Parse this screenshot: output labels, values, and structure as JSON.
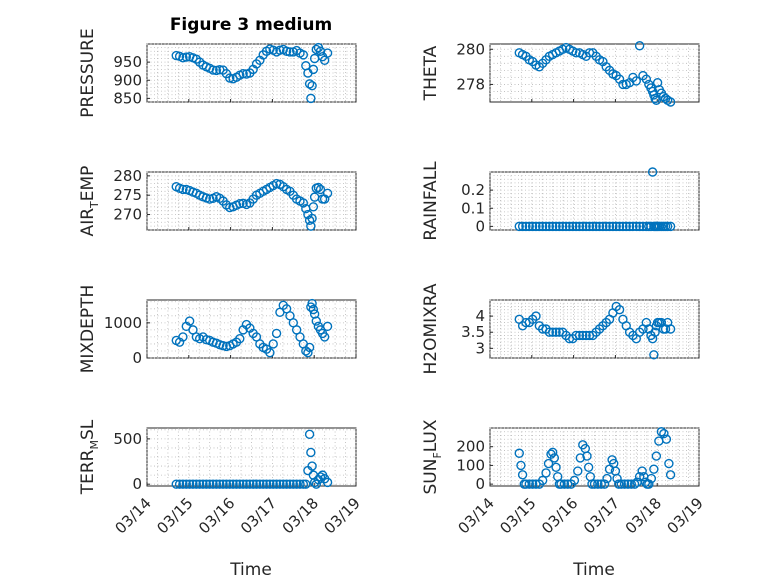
{
  "figure": {
    "title": "Figure 3 medium",
    "xlabel": "Time"
  },
  "style": {
    "marker_color": "#0072BD",
    "axes_color": "#262626",
    "grid_color": "#b9b9b9"
  },
  "chart_data": [
    {
      "type": "scatter",
      "panel": "top-left",
      "title": "Figure 3 medium",
      "ylabel": "PRESSURE",
      "ylabel_sub": "",
      "ylabel_tail": "",
      "ylim": [
        840,
        1000
      ],
      "yticks": [
        850,
        900,
        950
      ],
      "grid": true,
      "xlim": [
        0,
        5
      ],
      "xticks": [],
      "xtick_labels": [],
      "x": [
        0.7,
        0.78,
        0.86,
        0.94,
        1.02,
        1.1,
        1.18,
        1.26,
        1.34,
        1.42,
        1.5,
        1.58,
        1.66,
        1.74,
        1.82,
        1.9,
        1.98,
        2.06,
        2.14,
        2.22,
        2.3,
        2.38,
        2.46,
        2.54,
        2.62,
        2.7,
        2.78,
        2.86,
        2.94,
        3.02,
        3.1,
        3.18,
        3.26,
        3.34,
        3.42,
        3.5,
        3.58,
        3.66,
        3.74,
        3.8,
        3.85,
        3.89,
        3.92,
        3.95,
        3.98,
        4.01,
        4.05,
        4.1,
        4.15,
        4.2,
        4.25,
        4.32
      ],
      "y": [
        968,
        966,
        962,
        964,
        965,
        962,
        958,
        950,
        942,
        937,
        933,
        928,
        927,
        929,
        928,
        918,
        906,
        904,
        908,
        914,
        918,
        917,
        920,
        930,
        945,
        955,
        970,
        980,
        986,
        983,
        978,
        983,
        985,
        980,
        978,
        978,
        982,
        975,
        970,
        940,
        920,
        890,
        850,
        885,
        930,
        960,
        985,
        990,
        980,
        965,
        955,
        975
      ]
    },
    {
      "type": "scatter",
      "panel": "top-right",
      "ylabel": "THETA",
      "ylabel_sub": "",
      "ylabel_tail": "",
      "ylim": [
        277,
        280.3
      ],
      "yticks": [
        278,
        280
      ],
      "grid": true,
      "xlim": [
        0,
        5
      ],
      "xticks": [],
      "xtick_labels": [],
      "x": [
        0.7,
        0.78,
        0.86,
        0.94,
        1.02,
        1.1,
        1.18,
        1.26,
        1.34,
        1.42,
        1.5,
        1.58,
        1.66,
        1.74,
        1.82,
        1.9,
        1.98,
        2.06,
        2.14,
        2.22,
        2.3,
        2.38,
        2.46,
        2.54,
        2.62,
        2.7,
        2.78,
        2.86,
        2.94,
        3.02,
        3.1,
        3.18,
        3.26,
        3.34,
        3.42,
        3.5,
        3.58,
        3.66,
        3.74,
        3.8,
        3.85,
        3.89,
        3.92,
        3.95,
        3.98,
        4.01,
        4.05,
        4.1,
        4.15,
        4.2,
        4.25,
        4.32
      ],
      "y": [
        279.8,
        279.7,
        279.6,
        279.4,
        279.3,
        279.1,
        279.0,
        279.2,
        279.4,
        279.6,
        279.7,
        279.8,
        279.9,
        280.0,
        280.1,
        280.0,
        279.9,
        279.8,
        279.8,
        279.7,
        279.6,
        279.8,
        279.8,
        279.6,
        279.4,
        279.3,
        279.0,
        278.8,
        278.6,
        278.5,
        278.3,
        278.0,
        278.0,
        278.1,
        278.4,
        278.2,
        280.2,
        278.5,
        278.3,
        278.0,
        277.8,
        277.6,
        277.4,
        277.2,
        277.1,
        278.1,
        277.7,
        277.5,
        277.3,
        277.2,
        277.1,
        277.0
      ]
    },
    {
      "type": "scatter",
      "panel": "row2-left",
      "ylabel": "AIR",
      "ylabel_sub": "T",
      "ylabel_tail": "EMP",
      "ylim": [
        266,
        281
      ],
      "yticks": [
        270,
        275,
        280
      ],
      "grid": true,
      "xlim": [
        0,
        5
      ],
      "xticks": [],
      "xtick_labels": [],
      "x": [
        0.7,
        0.78,
        0.86,
        0.94,
        1.02,
        1.1,
        1.18,
        1.26,
        1.34,
        1.42,
        1.5,
        1.58,
        1.66,
        1.74,
        1.82,
        1.9,
        1.98,
        2.06,
        2.14,
        2.22,
        2.3,
        2.38,
        2.46,
        2.54,
        2.62,
        2.7,
        2.78,
        2.86,
        2.94,
        3.02,
        3.1,
        3.18,
        3.26,
        3.34,
        3.42,
        3.5,
        3.58,
        3.66,
        3.74,
        3.8,
        3.85,
        3.89,
        3.92,
        3.95,
        3.98,
        4.01,
        4.05,
        4.1,
        4.15,
        4.2,
        4.25,
        4.32
      ],
      "y": [
        277.2,
        276.8,
        276.5,
        276.5,
        276.2,
        275.8,
        275.5,
        275.0,
        274.6,
        274.3,
        274.0,
        274.2,
        274.6,
        274.2,
        273.5,
        272.5,
        271.8,
        272.0,
        272.4,
        272.8,
        272.9,
        272.6,
        273.0,
        274.0,
        275.0,
        275.5,
        276.0,
        276.5,
        277.0,
        277.5,
        278.0,
        277.8,
        277.2,
        276.5,
        276.0,
        275.0,
        274.0,
        273.5,
        273.0,
        271.5,
        270.0,
        268.5,
        267.0,
        269.0,
        272.0,
        274.5,
        276.8,
        277.0,
        276.5,
        274.0,
        274.0,
        275.5
      ]
    },
    {
      "type": "scatter",
      "panel": "row2-right",
      "ylabel": "RAINFALL",
      "ylabel_sub": "",
      "ylabel_tail": "",
      "ylim": [
        -0.02,
        0.3
      ],
      "yticks": [
        0,
        0.1,
        0.2
      ],
      "grid": true,
      "xlim": [
        0,
        5
      ],
      "xticks": [],
      "xtick_labels": [],
      "x": [
        0.7,
        0.78,
        0.86,
        0.94,
        1.02,
        1.1,
        1.18,
        1.26,
        1.34,
        1.42,
        1.5,
        1.58,
        1.66,
        1.74,
        1.82,
        1.9,
        1.98,
        2.06,
        2.14,
        2.22,
        2.3,
        2.38,
        2.46,
        2.54,
        2.62,
        2.7,
        2.78,
        2.86,
        2.94,
        3.02,
        3.1,
        3.18,
        3.26,
        3.34,
        3.42,
        3.5,
        3.58,
        3.66,
        3.74,
        3.8,
        3.85,
        3.89,
        3.92,
        3.95,
        3.98,
        4.01,
        4.05,
        4.1,
        4.15,
        4.2,
        4.25,
        4.32
      ],
      "y": [
        0,
        0,
        0,
        0,
        0,
        0,
        0,
        0,
        0,
        0,
        0,
        0,
        0,
        0,
        0,
        0,
        0,
        0,
        0,
        0,
        0,
        0,
        0,
        0,
        0,
        0,
        0,
        0,
        0,
        0,
        0,
        0,
        0,
        0,
        0,
        0,
        0,
        0,
        0,
        0,
        0,
        0.3,
        0,
        0,
        0,
        0,
        0,
        0,
        0,
        0,
        0,
        0
      ]
    },
    {
      "type": "scatter",
      "panel": "row3-left",
      "ylabel": "MIXDEPTH",
      "ylabel_sub": "",
      "ylabel_tail": "",
      "ylim": [
        0,
        1650
      ],
      "yticks": [
        0,
        1000
      ],
      "grid": true,
      "xlim": [
        0,
        5
      ],
      "xticks": [],
      "xtick_labels": [],
      "x": [
        0.7,
        0.78,
        0.86,
        0.94,
        1.02,
        1.1,
        1.18,
        1.26,
        1.34,
        1.42,
        1.5,
        1.58,
        1.66,
        1.74,
        1.82,
        1.9,
        1.98,
        2.06,
        2.14,
        2.22,
        2.3,
        2.38,
        2.46,
        2.54,
        2.62,
        2.7,
        2.78,
        2.86,
        2.94,
        3.02,
        3.1,
        3.18,
        3.26,
        3.34,
        3.42,
        3.5,
        3.58,
        3.66,
        3.74,
        3.8,
        3.85,
        3.89,
        3.92,
        3.95,
        3.98,
        4.01,
        4.05,
        4.1,
        4.15,
        4.2,
        4.25,
        4.32
      ],
      "y": [
        500,
        450,
        600,
        900,
        1050,
        800,
        600,
        550,
        600,
        520,
        500,
        450,
        420,
        380,
        350,
        330,
        350,
        400,
        450,
        550,
        800,
        950,
        850,
        700,
        600,
        400,
        300,
        250,
        150,
        400,
        700,
        1300,
        1500,
        1400,
        1200,
        1000,
        800,
        600,
        400,
        200,
        150,
        300,
        1450,
        1550,
        1380,
        1250,
        1050,
        900,
        800,
        700,
        600,
        900
      ]
    },
    {
      "type": "scatter",
      "panel": "row3-right",
      "ylabel": "H2OMIXRA",
      "ylabel_sub": "",
      "ylabel_tail": "",
      "ylim": [
        2.7,
        4.5
      ],
      "yticks": [
        3,
        3.5,
        4
      ],
      "grid": true,
      "xlim": [
        0,
        5
      ],
      "xticks": [],
      "xtick_labels": [],
      "x": [
        0.7,
        0.78,
        0.86,
        0.94,
        1.02,
        1.1,
        1.18,
        1.26,
        1.34,
        1.42,
        1.5,
        1.58,
        1.66,
        1.74,
        1.82,
        1.9,
        1.98,
        2.06,
        2.14,
        2.22,
        2.3,
        2.38,
        2.46,
        2.54,
        2.62,
        2.7,
        2.78,
        2.86,
        2.94,
        3.02,
        3.1,
        3.18,
        3.26,
        3.34,
        3.42,
        3.5,
        3.58,
        3.66,
        3.74,
        3.8,
        3.85,
        3.89,
        3.92,
        3.95,
        3.98,
        4.01,
        4.05,
        4.1,
        4.15,
        4.2,
        4.25,
        4.32
      ],
      "y": [
        3.9,
        3.7,
        3.8,
        3.8,
        3.9,
        4.0,
        3.7,
        3.6,
        3.6,
        3.5,
        3.5,
        3.5,
        3.5,
        3.5,
        3.4,
        3.3,
        3.3,
        3.4,
        3.4,
        3.4,
        3.4,
        3.4,
        3.4,
        3.5,
        3.6,
        3.7,
        3.8,
        3.9,
        4.1,
        4.3,
        4.2,
        3.9,
        3.7,
        3.5,
        3.4,
        3.3,
        3.5,
        3.6,
        3.8,
        3.6,
        3.4,
        3.3,
        2.8,
        3.5,
        3.7,
        3.8,
        3.8,
        3.8,
        3.6,
        3.6,
        3.8,
        3.6
      ]
    },
    {
      "type": "scatter",
      "panel": "bottom-left",
      "ylabel": "TERR",
      "ylabel_sub": "M",
      "ylabel_tail": "SL",
      "ylim": [
        -20,
        620
      ],
      "yticks": [
        0,
        500
      ],
      "grid": true,
      "xlim": [
        0,
        5
      ],
      "xticks": [
        0,
        1,
        2,
        3,
        4,
        5
      ],
      "xtick_labels": [
        "03/14",
        "03/15",
        "03/16",
        "03/17",
        "03/18",
        "03/19"
      ],
      "x": [
        0.7,
        0.78,
        0.86,
        0.94,
        1.02,
        1.1,
        1.18,
        1.26,
        1.34,
        1.42,
        1.5,
        1.58,
        1.66,
        1.74,
        1.82,
        1.9,
        1.98,
        2.06,
        2.14,
        2.22,
        2.3,
        2.38,
        2.46,
        2.54,
        2.62,
        2.7,
        2.78,
        2.86,
        2.94,
        3.02,
        3.1,
        3.18,
        3.26,
        3.34,
        3.42,
        3.5,
        3.58,
        3.66,
        3.74,
        3.8,
        3.85,
        3.89,
        3.92,
        3.95,
        3.98,
        4.01,
        4.05,
        4.1,
        4.15,
        4.2,
        4.25,
        4.32
      ],
      "y": [
        0,
        0,
        0,
        0,
        0,
        0,
        0,
        0,
        0,
        0,
        0,
        0,
        0,
        0,
        0,
        0,
        0,
        0,
        0,
        0,
        0,
        0,
        0,
        0,
        0,
        0,
        0,
        0,
        0,
        0,
        0,
        0,
        0,
        0,
        0,
        0,
        0,
        0,
        0,
        0,
        150,
        550,
        350,
        200,
        100,
        20,
        0,
        50,
        80,
        100,
        60,
        20
      ]
    },
    {
      "type": "scatter",
      "panel": "bottom-right",
      "ylabel": "SUN",
      "ylabel_sub": "F",
      "ylabel_tail": "LUX",
      "ylim": [
        -10,
        300
      ],
      "yticks": [
        0,
        100,
        200
      ],
      "grid": true,
      "xlim": [
        0,
        5
      ],
      "xticks": [
        0,
        1,
        2,
        3,
        4,
        5
      ],
      "xtick_labels": [
        "03/14",
        "03/15",
        "03/16",
        "03/17",
        "03/18",
        "03/19"
      ],
      "x": [
        0.7,
        0.74,
        0.78,
        0.82,
        0.86,
        0.94,
        1.02,
        1.1,
        1.18,
        1.26,
        1.34,
        1.4,
        1.46,
        1.5,
        1.54,
        1.58,
        1.62,
        1.66,
        1.7,
        1.78,
        1.86,
        1.94,
        2.02,
        2.1,
        2.16,
        2.22,
        2.28,
        2.32,
        2.36,
        2.4,
        2.44,
        2.5,
        2.58,
        2.66,
        2.74,
        2.8,
        2.86,
        2.92,
        2.96,
        3.0,
        3.04,
        3.08,
        3.14,
        3.22,
        3.3,
        3.38,
        3.46,
        3.52,
        3.58,
        3.64,
        3.68,
        3.72,
        3.76,
        3.8,
        3.86,
        3.92,
        3.98,
        4.04,
        4.1,
        4.16,
        4.22,
        4.28,
        4.32
      ],
      "y": [
        165,
        100,
        50,
        0,
        0,
        0,
        0,
        0,
        0,
        20,
        60,
        110,
        160,
        170,
        140,
        90,
        40,
        0,
        0,
        0,
        0,
        0,
        20,
        70,
        140,
        210,
        190,
        150,
        90,
        40,
        0,
        0,
        0,
        0,
        0,
        30,
        80,
        130,
        110,
        70,
        30,
        0,
        0,
        0,
        0,
        0,
        0,
        10,
        40,
        70,
        40,
        10,
        0,
        0,
        30,
        80,
        150,
        230,
        280,
        270,
        240,
        110,
        50
      ]
    }
  ]
}
